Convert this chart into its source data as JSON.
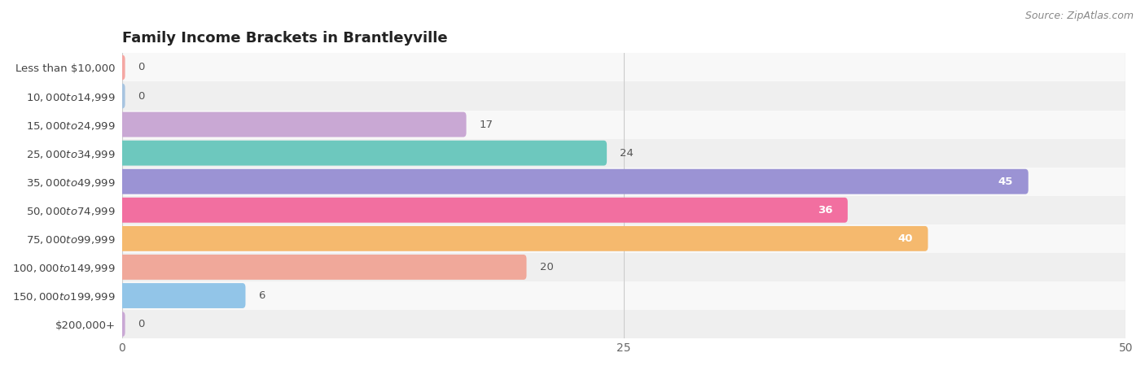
{
  "title": "Family Income Brackets in Brantleyville",
  "source": "Source: ZipAtlas.com",
  "categories": [
    "Less than $10,000",
    "$10,000 to $14,999",
    "$15,000 to $24,999",
    "$25,000 to $34,999",
    "$35,000 to $49,999",
    "$50,000 to $74,999",
    "$75,000 to $99,999",
    "$100,000 to $149,999",
    "$150,000 to $199,999",
    "$200,000+"
  ],
  "values": [
    0,
    0,
    17,
    24,
    45,
    36,
    40,
    20,
    6,
    0
  ],
  "bar_colors": [
    "#f4a7a3",
    "#a8c4e0",
    "#c9a8d4",
    "#6dc8be",
    "#9b93d4",
    "#f26fa0",
    "#f5b96e",
    "#f0a89a",
    "#92c5e8",
    "#c9a8d4"
  ],
  "row_bg_even": "#efefef",
  "row_bg_odd": "#f8f8f8",
  "xlim": [
    0,
    50
  ],
  "xticks": [
    0,
    25,
    50
  ],
  "title_fontsize": 13,
  "label_fontsize": 9.5,
  "value_fontsize": 9.5,
  "bar_height": 0.58,
  "inside_threshold": 30
}
